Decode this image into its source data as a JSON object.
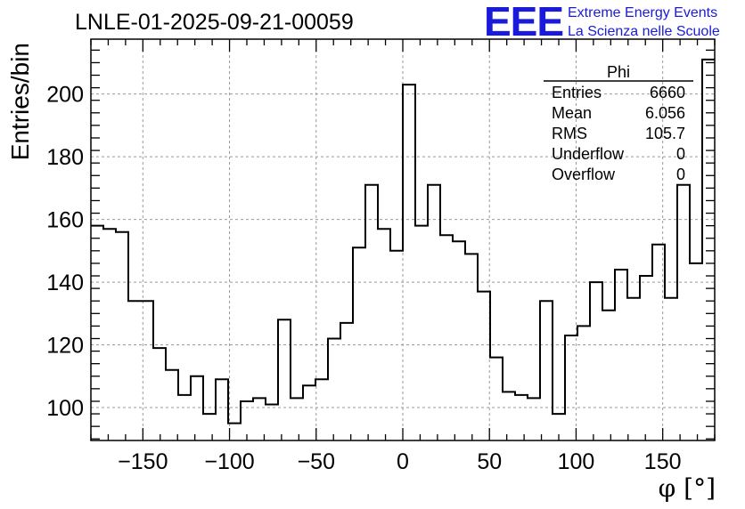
{
  "chart_data": {
    "type": "histogram",
    "title": "LNLE-01-2025-09-21-00059",
    "xlabel": "φ [°]",
    "ylabel": "Entries/bin",
    "xlim": [
      -180,
      180
    ],
    "ylim": [
      89.5,
      217.5
    ],
    "bin_width": 7.2,
    "xticks": [
      -150,
      -100,
      -50,
      0,
      50,
      100,
      150
    ],
    "xtick_labels": [
      "−150",
      "−100",
      "−50",
      "0",
      "50",
      "100",
      "150"
    ],
    "yticks": [
      100,
      120,
      140,
      160,
      180,
      200
    ],
    "ytick_labels": [
      "100",
      "120",
      "140",
      "160",
      "180",
      "200"
    ],
    "grid": true,
    "values": [
      158,
      157,
      156,
      134,
      134,
      119,
      112,
      104,
      110,
      98,
      109,
      95,
      102,
      103,
      101,
      128,
      103,
      107,
      109,
      122,
      127,
      151,
      171,
      157,
      150,
      203,
      158,
      171,
      155,
      153,
      149,
      137,
      116,
      105,
      104,
      103,
      134,
      98,
      123,
      126,
      140,
      131,
      144,
      135,
      142,
      152,
      135,
      171,
      146,
      211
    ],
    "stats_box": {
      "name": "Phi",
      "rows": [
        {
          "label": "Entries",
          "value": "6660"
        },
        {
          "label": "Mean",
          "value": "6.056"
        },
        {
          "label": "RMS",
          "value": "105.7"
        },
        {
          "label": "Underflow",
          "value": "0"
        },
        {
          "label": "Overflow",
          "value": "0"
        }
      ]
    }
  },
  "logo": {
    "text": "EEE",
    "line1": "Extreme Energy Events",
    "line2": "La Scienza nelle Scuole",
    "color": "#1a1adb"
  }
}
